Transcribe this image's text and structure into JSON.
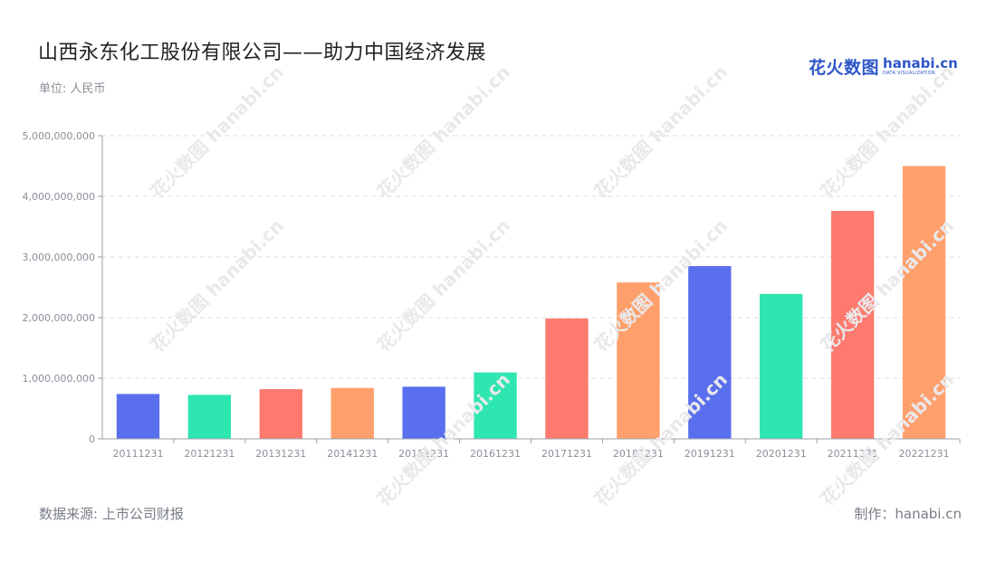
{
  "header": {
    "title": "山西永东化工股份有限公司——助力中国经济发展",
    "unit": "单位: 人民币"
  },
  "logo": {
    "cn": "花火数图",
    "en": "hanabi.cn",
    "en_sub": "DATA VISUALIZATION"
  },
  "footer": {
    "source": "数据来源: 上市公司财报",
    "maker": "制作：hanabi.cn"
  },
  "watermark": {
    "text": "花火数图 hanabi.cn"
  },
  "chart_data": {
    "type": "bar",
    "title": "山西永东化工股份有限公司——助力中国经济发展",
    "xlabel": "",
    "ylabel": "",
    "ylim": [
      0,
      5000000000
    ],
    "yticks": [
      0,
      1000000000,
      2000000000,
      3000000000,
      4000000000,
      5000000000
    ],
    "ytick_labels": [
      "0",
      "1,000,000,000",
      "2,000,000,000",
      "3,000,000,000",
      "4,000,000,000",
      "5,000,000,000"
    ],
    "grid": true,
    "categories": [
      "20111231",
      "20121231",
      "20131231",
      "20141231",
      "20151231",
      "20161231",
      "20171231",
      "20181231",
      "20191231",
      "20201231",
      "20211231",
      "20221231"
    ],
    "values": [
      740000000,
      725000000,
      820000000,
      840000000,
      860000000,
      1095000000,
      1985000000,
      2580000000,
      2850000000,
      2390000000,
      3760000000,
      4500000000
    ],
    "colors": [
      "#5a6fee",
      "#2ee6b0",
      "#ff7a6e",
      "#ffa06c",
      "#5a6fee",
      "#2ee6b0",
      "#ff7a6e",
      "#ffa06c",
      "#5a6fee",
      "#2ee6b0",
      "#ff7a6e",
      "#ffa06c"
    ]
  }
}
